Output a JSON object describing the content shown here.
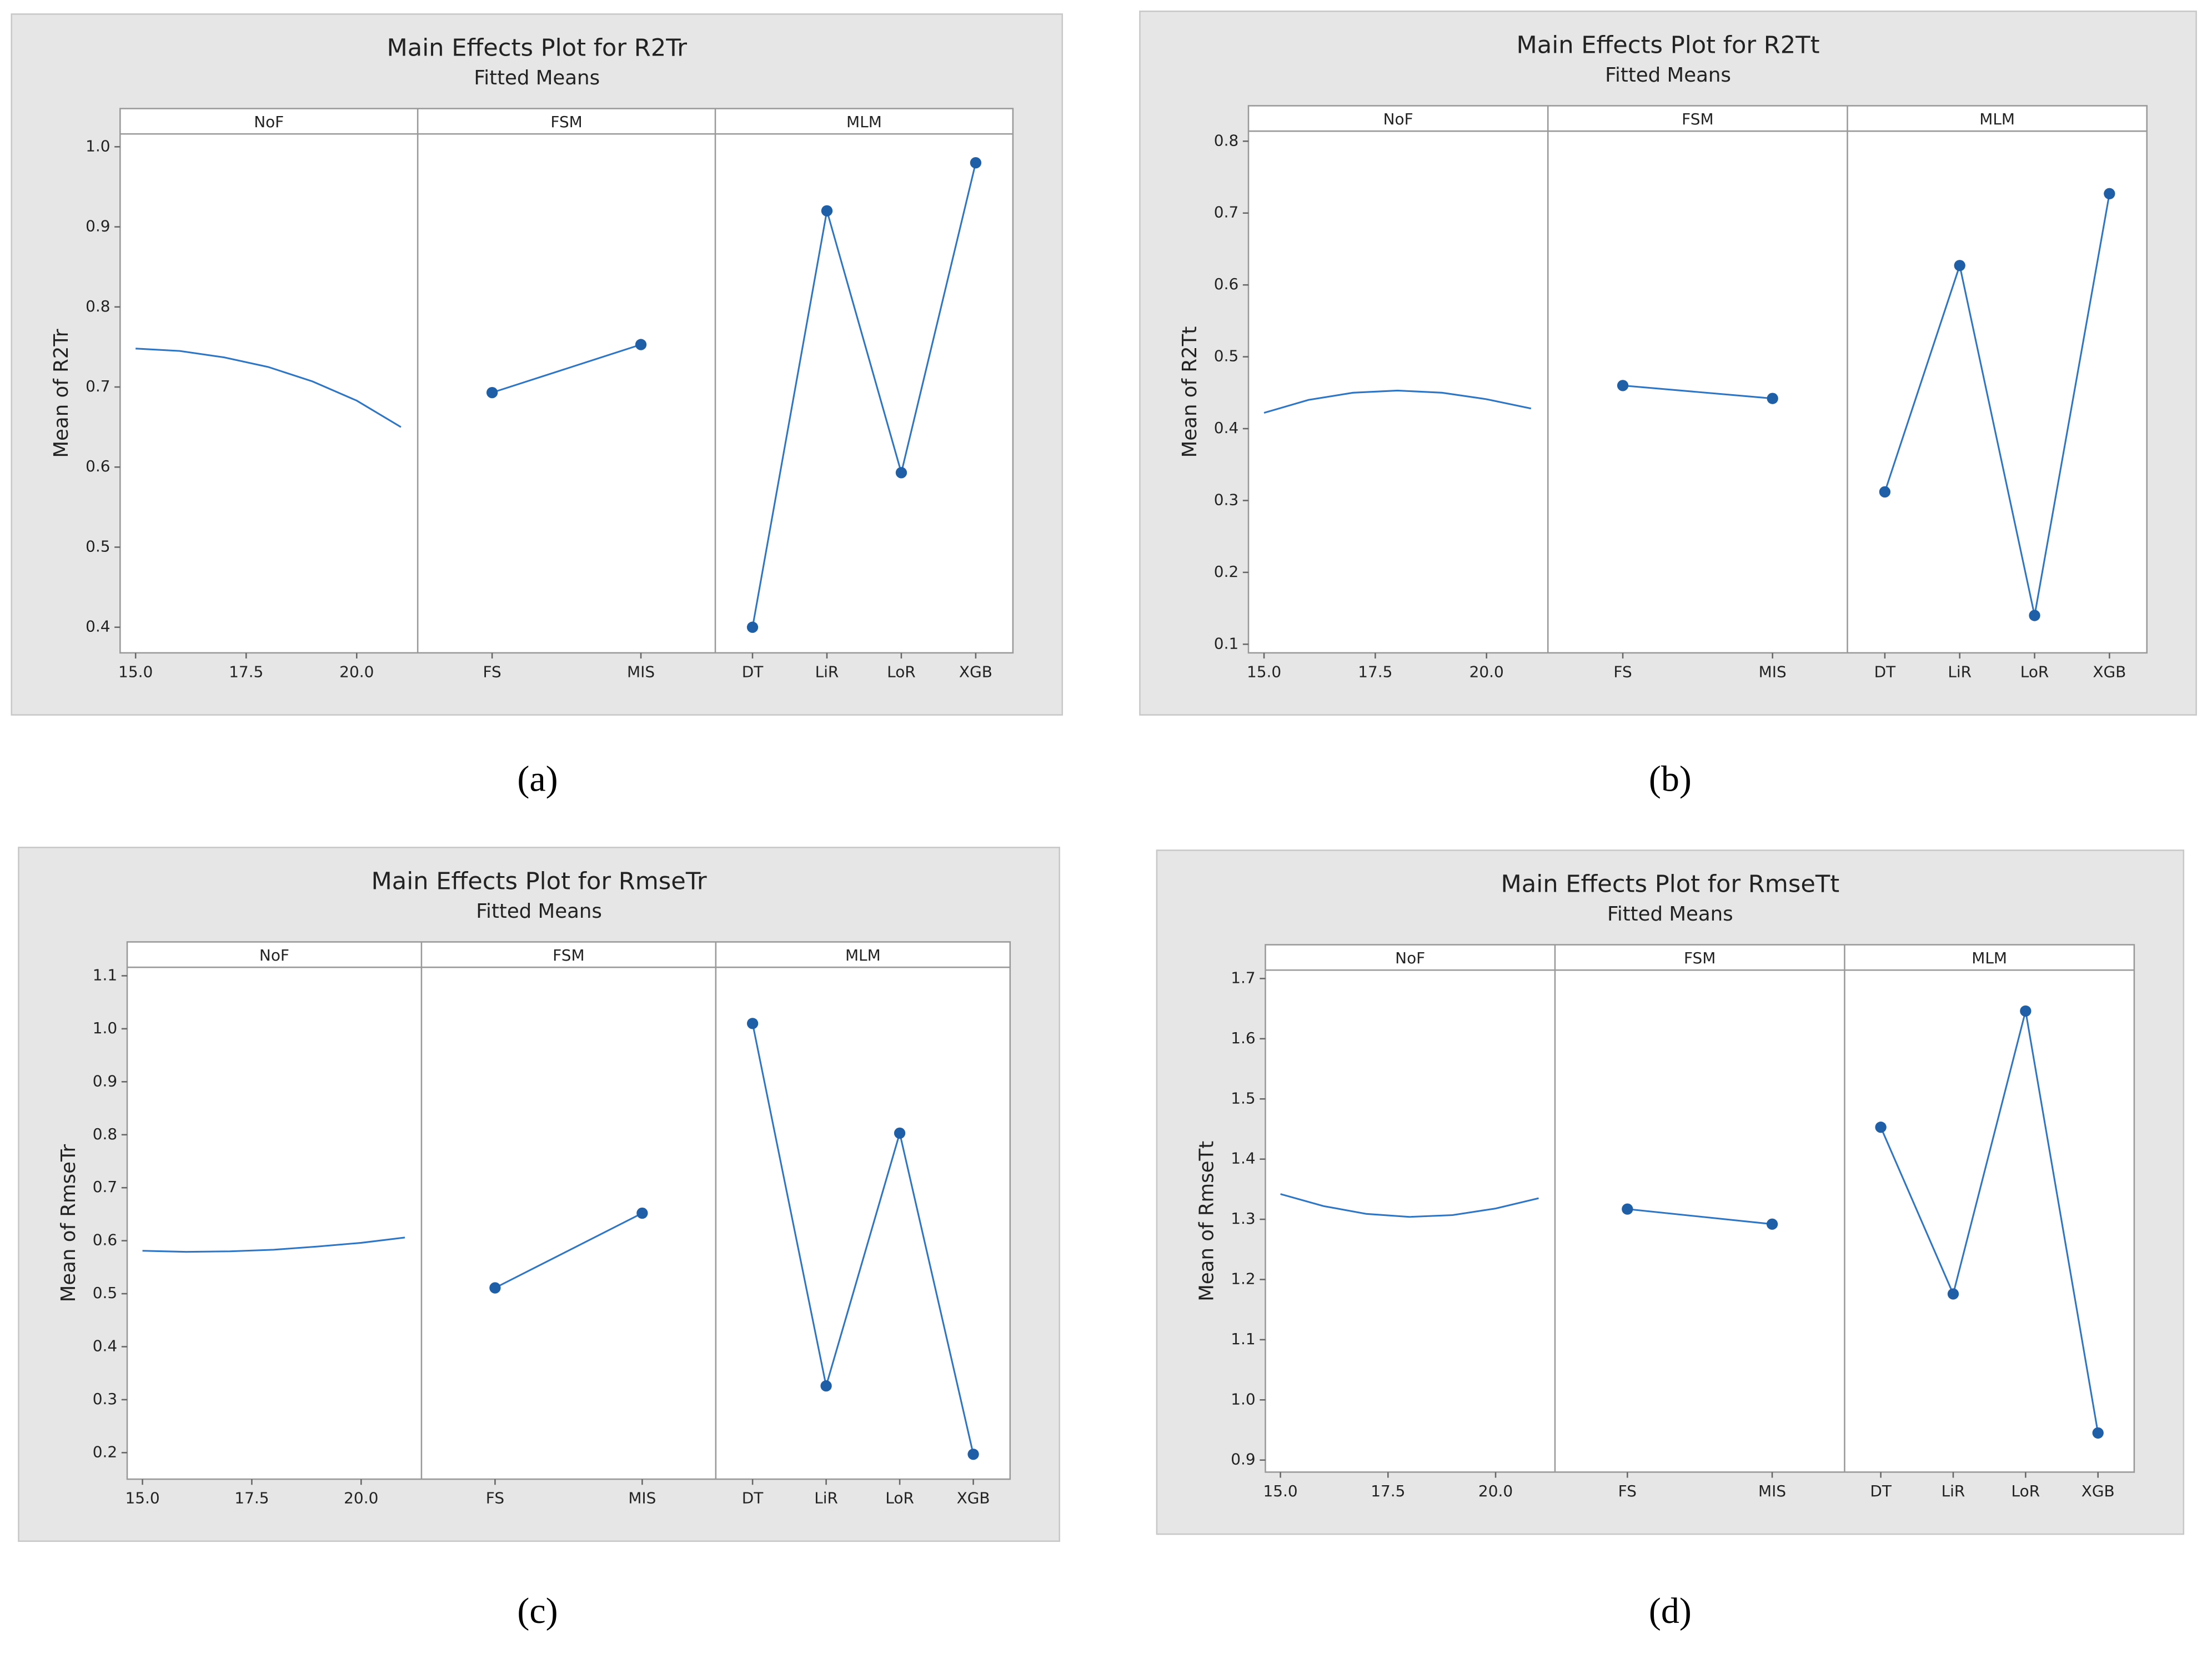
{
  "chart_data": [
    {
      "type": "line",
      "caption": "(a)",
      "title": "Main Effects Plot for R2Tr",
      "subtitle": "Fitted Means",
      "ylabel": "Mean of R2Tr",
      "color": "#1f5fa8",
      "ylim": [
        0.368,
        1.016
      ],
      "yticks": [
        0.4,
        0.5,
        0.6,
        0.7,
        0.8,
        0.9,
        {
          "value": 1,
          "label": "1.0"
        }
      ],
      "panels": [
        {
          "label": "NoF",
          "x": [
            15,
            16,
            17,
            18,
            19,
            20,
            21
          ],
          "values": [
            0.748,
            0.745,
            0.737,
            0.725,
            0.707,
            0.683,
            0.65
          ],
          "xlim": [
            14.65,
            21.38
          ],
          "xticks": [
            {
              "value": 15,
              "label": "15.0"
            },
            17.5,
            {
              "value": 20,
              "label": "20.0"
            }
          ]
        },
        {
          "label": "FSM",
          "categories": [
            "FS",
            "MIS"
          ],
          "values": [
            0.693,
            0.753
          ]
        },
        {
          "label": "MLM",
          "categories": [
            "DT",
            "LiR",
            "LoR",
            "XGB"
          ],
          "values": [
            0.4,
            0.92,
            0.593,
            0.98
          ]
        }
      ]
    },
    {
      "type": "line",
      "caption": "(b)",
      "title": "Main Effects Plot for R2Tt",
      "subtitle": "Fitted Means",
      "ylabel": "Mean of R2Tt",
      "color": "#1f5fa8",
      "ylim": [
        0.088,
        0.814
      ],
      "yticks": [
        0.1,
        0.2,
        0.3,
        0.4,
        0.5,
        0.6,
        0.7,
        0.8
      ],
      "panels": [
        {
          "label": "NoF",
          "x": [
            15,
            16,
            17,
            18,
            19,
            20,
            21
          ],
          "values": [
            0.422,
            0.44,
            0.45,
            0.453,
            0.45,
            0.441,
            0.428
          ],
          "xlim": [
            14.65,
            21.38
          ],
          "xticks": [
            {
              "value": 15,
              "label": "15.0"
            },
            17.5,
            {
              "value": 20,
              "label": "20.0"
            }
          ]
        },
        {
          "label": "FSM",
          "categories": [
            "FS",
            "MIS"
          ],
          "values": [
            0.46,
            0.442
          ]
        },
        {
          "label": "MLM",
          "categories": [
            "DT",
            "LiR",
            "LoR",
            "XGB"
          ],
          "values": [
            0.312,
            0.627,
            0.14,
            0.727
          ]
        }
      ]
    },
    {
      "type": "line",
      "caption": "(c)",
      "title": "Main Effects Plot for RmseTr",
      "subtitle": "Fitted Means",
      "ylabel": "Mean of RmseTr",
      "color": "#1f5fa8",
      "ylim": [
        0.15,
        1.116
      ],
      "yticks": [
        0.2,
        0.3,
        0.4,
        0.5,
        0.6,
        0.7,
        0.8,
        0.9,
        {
          "value": 1,
          "label": "1.0"
        },
        1.1
      ],
      "panels": [
        {
          "label": "NoF",
          "x": [
            15,
            16,
            17,
            18,
            19,
            20,
            21
          ],
          "values": [
            0.581,
            0.579,
            0.58,
            0.583,
            0.589,
            0.596,
            0.606
          ],
          "xlim": [
            14.65,
            21.38
          ],
          "xticks": [
            {
              "value": 15,
              "label": "15.0"
            },
            17.5,
            {
              "value": 20,
              "label": "20.0"
            }
          ]
        },
        {
          "label": "FSM",
          "categories": [
            "FS",
            "MIS"
          ],
          "values": [
            0.511,
            0.652
          ]
        },
        {
          "label": "MLM",
          "categories": [
            "DT",
            "LiR",
            "LoR",
            "XGB"
          ],
          "values": [
            1.01,
            0.326,
            0.803,
            0.197
          ]
        }
      ]
    },
    {
      "type": "line",
      "caption": "(d)",
      "title": "Main Effects Plot for RmseTt",
      "subtitle": "Fitted Means",
      "ylabel": "Mean of RmseTt",
      "color": "#1f5fa8",
      "ylim": [
        0.88,
        1.714
      ],
      "yticks": [
        0.9,
        {
          "value": 1,
          "label": "1.0"
        },
        1.1,
        1.2,
        1.3,
        1.4,
        1.5,
        1.6,
        1.7
      ],
      "panels": [
        {
          "label": "NoF",
          "x": [
            15,
            16,
            17,
            18,
            19,
            20,
            21
          ],
          "values": [
            1.342,
            1.322,
            1.309,
            1.304,
            1.307,
            1.318,
            1.335
          ],
          "xlim": [
            14.65,
            21.38
          ],
          "xticks": [
            {
              "value": 15,
              "label": "15.0"
            },
            17.5,
            {
              "value": 20,
              "label": "20.0"
            }
          ]
        },
        {
          "label": "FSM",
          "categories": [
            "FS",
            "MIS"
          ],
          "values": [
            1.317,
            1.292
          ]
        },
        {
          "label": "MLM",
          "categories": [
            "DT",
            "LiR",
            "LoR",
            "XGB"
          ],
          "values": [
            1.453,
            1.176,
            1.646,
            0.945
          ]
        }
      ]
    }
  ]
}
